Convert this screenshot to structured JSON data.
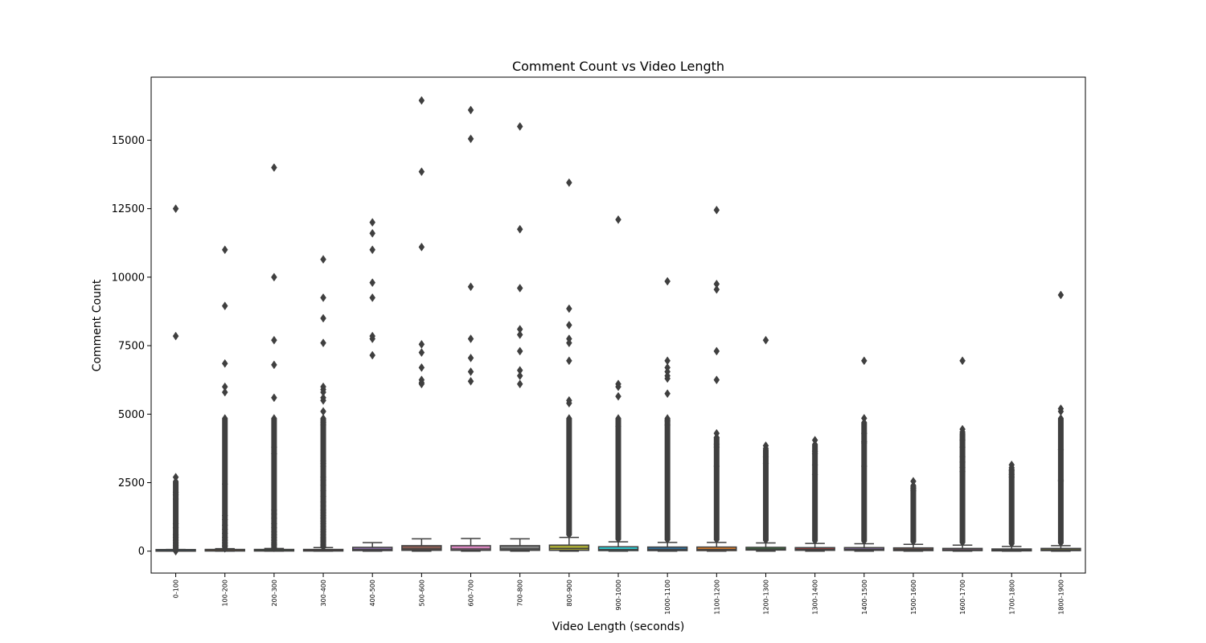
{
  "chart_data": {
    "type": "box",
    "title": "Comment Count vs Video Length",
    "xlabel": "Video Length (seconds)",
    "ylabel": "Comment Count",
    "ylim": [
      -800,
      17300
    ],
    "y_ticks": [
      0,
      2500,
      5000,
      7500,
      10000,
      12500,
      15000
    ],
    "y_tick_labels": [
      "0",
      "2500",
      "5000",
      "7500",
      "10000",
      "12500",
      "15000"
    ],
    "grid": false,
    "legend": "none",
    "categories": [
      "0-100",
      "100-200",
      "200-300",
      "300-400",
      "400-500",
      "500-600",
      "600-700",
      "700-800",
      "800-900",
      "900-1000",
      "1000-1100",
      "1100-1200",
      "1200-1300",
      "1300-1400",
      "1400-1500",
      "1500-1600",
      "1600-1700",
      "1700-1800",
      "1800-1900"
    ],
    "colors": [
      "#3274a1",
      "#e1812c",
      "#3a923a",
      "#c03d3e",
      "#9372b2",
      "#845b53",
      "#d684bd",
      "#7f7f7f",
      "#a9aa35",
      "#2ed0d8",
      "#3174a1",
      "#e1812c",
      "#3a923a",
      "#c03d3e",
      "#9372b2",
      "#845b53",
      "#d684bd",
      "#7f7f7f",
      "#a9aa35"
    ],
    "boxes": [
      {
        "label": "0-100",
        "q1": 0,
        "median": 10,
        "q3": 30,
        "whisker_low": 0,
        "whisker_high": 60,
        "outliers": [
          12500,
          7850,
          2700,
          2150,
          2050,
          1900,
          1000,
          850,
          600,
          500,
          400,
          300,
          200,
          120,
          80,
          0
        ]
      },
      {
        "label": "100-200",
        "q1": 5,
        "median": 20,
        "q3": 50,
        "whisker_low": 0,
        "whisker_high": 90,
        "outliers": [
          11000,
          8950,
          6850,
          6000,
          5800,
          2450,
          1300,
          1150,
          950,
          800,
          650,
          500,
          400,
          300,
          200,
          150,
          100
        ]
      },
      {
        "label": "200-300",
        "q1": 5,
        "median": 20,
        "q3": 50,
        "whisker_low": 0,
        "whisker_high": 100,
        "outliers": [
          14000,
          10000,
          7700,
          6800,
          5600,
          3800,
          3550,
          1500,
          1350,
          1200,
          1000,
          850,
          700,
          600,
          500,
          400,
          300,
          250,
          200,
          150,
          120
        ]
      },
      {
        "label": "300-400",
        "q1": 5,
        "median": 25,
        "q3": 60,
        "whisker_low": 0,
        "whisker_high": 130,
        "outliers": [
          10650,
          9250,
          8500,
          7600,
          6000,
          5900,
          5800,
          5600,
          5500,
          5100,
          4700,
          4600,
          3300,
          3200,
          3100,
          2700,
          2600,
          2400,
          2200,
          2000,
          1800,
          1650,
          1500,
          1400,
          1300,
          1200,
          1100,
          1000,
          900,
          800,
          700,
          600,
          500,
          450,
          400,
          350,
          300,
          250,
          200,
          170,
          150
        ]
      },
      {
        "label": "400-500",
        "q1": 20,
        "median": 60,
        "q3": 140,
        "whisker_low": 0,
        "whisker_high": 310,
        "outliers": [
          12000,
          11600,
          11000,
          9800,
          9250,
          7850,
          7750,
          7150
        ]
      },
      {
        "label": "500-600",
        "q1": 30,
        "median": 80,
        "q3": 200,
        "whisker_low": 0,
        "whisker_high": 450,
        "outliers": [
          16450,
          13850,
          11100,
          7550,
          7250,
          6700,
          6250,
          6150,
          6100
        ]
      },
      {
        "label": "600-700",
        "q1": 30,
        "median": 80,
        "q3": 200,
        "whisker_low": 0,
        "whisker_high": 460,
        "outliers": [
          16100,
          15050,
          9650,
          7750,
          7050,
          6550,
          6200
        ]
      },
      {
        "label": "700-800",
        "q1": 30,
        "median": 80,
        "q3": 200,
        "whisker_low": 0,
        "whisker_high": 450,
        "outliers": [
          15500,
          11750,
          9600,
          8100,
          7900,
          7300,
          6600,
          6400,
          6100
        ]
      },
      {
        "label": "800-900",
        "q1": 30,
        "median": 100,
        "q3": 220,
        "whisker_low": 0,
        "whisker_high": 500,
        "outliers": [
          13450,
          8850,
          8250,
          7750,
          7600,
          6950,
          5500,
          5400
        ]
      },
      {
        "label": "900-1000",
        "q1": 20,
        "median": 60,
        "q3": 160,
        "whisker_low": 0,
        "whisker_high": 340,
        "outliers": [
          12100,
          6100,
          6000,
          5650,
          4550
        ]
      },
      {
        "label": "1000-1100",
        "q1": 20,
        "median": 60,
        "q3": 150,
        "whisker_low": 0,
        "whisker_high": 320,
        "outliers": [
          9850,
          6950,
          6700,
          6550,
          6400,
          6300,
          5750,
          4750,
          4600
        ]
      },
      {
        "label": "1100-1200",
        "q1": 20,
        "median": 60,
        "q3": 150,
        "whisker_low": 0,
        "whisker_high": 320,
        "outliers": [
          12450,
          9750,
          9550,
          7300,
          6250,
          4300,
          4150,
          3900,
          3800,
          3100
        ]
      },
      {
        "label": "1200-1300",
        "q1": 40,
        "median": 80,
        "q3": 140,
        "whisker_low": 0,
        "whisker_high": 300,
        "outliers": [
          7700,
          3850,
          3750,
          3450,
          3200
        ]
      },
      {
        "label": "1300-1400",
        "q1": 30,
        "median": 70,
        "q3": 130,
        "whisker_low": 0,
        "whisker_high": 280,
        "outliers": [
          4050,
          3650,
          3550,
          3150,
          2800
        ]
      },
      {
        "label": "1400-1500",
        "q1": 30,
        "median": 70,
        "q3": 130,
        "whisker_low": 0,
        "whisker_high": 270,
        "outliers": [
          6950,
          4850,
          4300,
          4000,
          3950,
          3100
        ]
      },
      {
        "label": "1500-1600",
        "q1": 20,
        "median": 60,
        "q3": 120,
        "whisker_low": 0,
        "whisker_high": 250,
        "outliers": [
          2550,
          2300,
          2200
        ]
      },
      {
        "label": "1600-1700",
        "q1": 20,
        "median": 50,
        "q3": 100,
        "whisker_low": 0,
        "whisker_high": 220,
        "outliers": [
          6950,
          4450,
          4350,
          4050,
          3800,
          3450,
          3250,
          3050,
          2900
        ]
      },
      {
        "label": "1700-1800",
        "q1": 10,
        "median": 40,
        "q3": 80,
        "whisker_low": 0,
        "whisker_high": 170,
        "outliers": [
          3150,
          3050,
          2950,
          2800,
          2700
        ]
      },
      {
        "label": "1800-1900",
        "q1": 20,
        "median": 50,
        "q3": 100,
        "whisker_low": 0,
        "whisker_high": 200,
        "outliers": [
          9350,
          5200,
          5100,
          3700,
          2600,
          2550
        ]
      }
    ]
  }
}
